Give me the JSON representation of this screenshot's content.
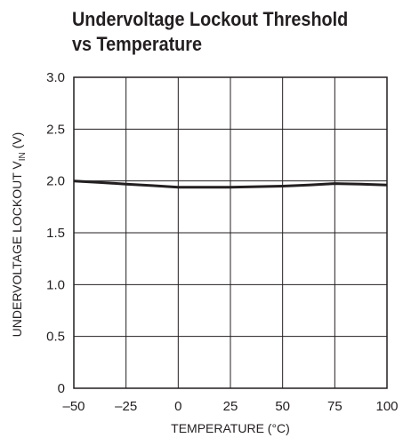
{
  "title_lines": [
    "Undervoltage Lockout Threshold",
    "vs Temperature"
  ],
  "chart_data": {
    "type": "line",
    "title": "Undervoltage Lockout Threshold vs Temperature",
    "xlabel": "TEMPERATURE (°C)",
    "ylabel_parts": {
      "before": "UNDERVOLTAGE LOCKOUT V",
      "sub": "IN",
      "after": " (V)"
    },
    "xlim": [
      -50,
      100
    ],
    "ylim": [
      0,
      3.0
    ],
    "x_ticks": [
      -50,
      -25,
      0,
      25,
      50,
      75,
      100
    ],
    "x_tick_labels": [
      "–50",
      "–25",
      "0",
      "25",
      "50",
      "75",
      "100"
    ],
    "y_ticks": [
      0,
      0.5,
      1.0,
      1.5,
      2.0,
      2.5,
      3.0
    ],
    "y_tick_labels": [
      "0",
      "0.5",
      "1.0",
      "1.5",
      "2.0",
      "2.5",
      "3.0"
    ],
    "grid": true,
    "series": [
      {
        "x": [
          -50,
          -37.5,
          -25,
          -12.5,
          0,
          12.5,
          25,
          37.5,
          50,
          62.5,
          75,
          87.5,
          100
        ],
        "y": [
          2.0,
          1.985,
          1.97,
          1.955,
          1.94,
          1.94,
          1.94,
          1.945,
          1.95,
          1.96,
          1.975,
          1.97,
          1.96
        ]
      }
    ]
  }
}
